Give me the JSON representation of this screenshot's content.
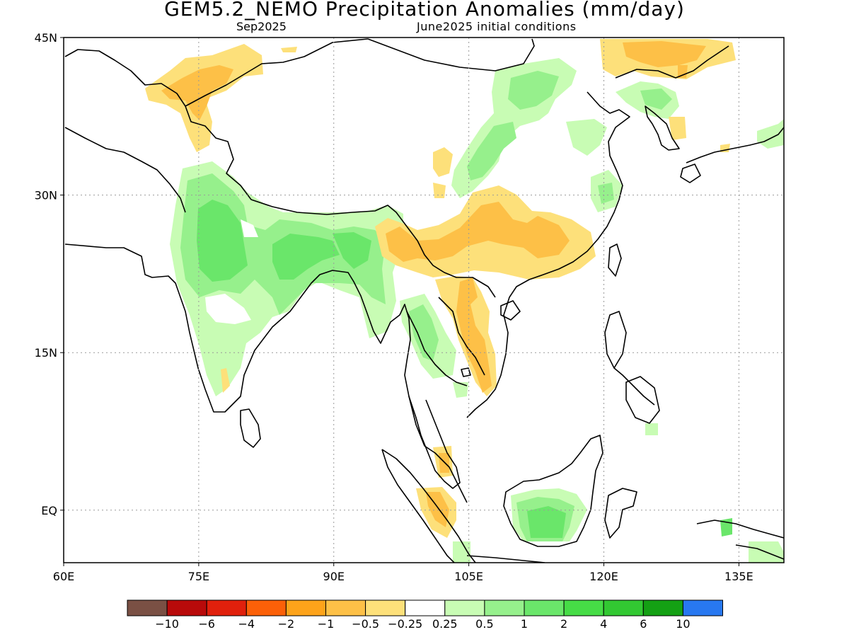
{
  "title": "GEM5.2_NEMO Precipitation Anomalies (mm/day)",
  "subtitle_left": "Sep2025",
  "subtitle_right": "June2025 initial conditions",
  "map": {
    "lon_range": [
      60,
      140
    ],
    "lat_range": [
      -5,
      45
    ],
    "grid": "dotted",
    "lon_ticks": [
      {
        "value": 60,
        "label": "60E"
      },
      {
        "value": 75,
        "label": "75E"
      },
      {
        "value": 90,
        "label": "90E"
      },
      {
        "value": 105,
        "label": "105E"
      },
      {
        "value": 120,
        "label": "120E"
      },
      {
        "value": 135,
        "label": "135E"
      }
    ],
    "lat_ticks": [
      {
        "value": 45,
        "label": "45N"
      },
      {
        "value": 30,
        "label": "30N"
      },
      {
        "value": 15,
        "label": "15N"
      },
      {
        "value": 0,
        "label": "EQ"
      }
    ]
  },
  "colors": {
    "l1": "#fde07a",
    "l2": "#fdc047",
    "l3": "#fda31a",
    "g1": "#c8fcb4",
    "g2": "#96f08c",
    "g3": "#6ae66a",
    "g4": "#46dc46"
  },
  "legend": {
    "colors": [
      "#7a5044",
      "#b80a0a",
      "#e0200c",
      "#fb6008",
      "#fda31a",
      "#fdc047",
      "#fde07a",
      "#ffffff",
      "#c8fcb4",
      "#96f08c",
      "#6ae66a",
      "#46dc46",
      "#32c832",
      "#14a014",
      "#2878f0"
    ],
    "labels": [
      "−10",
      "−6",
      "−4",
      "−2",
      "−1",
      "−0.5",
      "−0.25",
      "0.25",
      "0.5",
      "1",
      "2",
      "4",
      "6",
      "10"
    ]
  }
}
